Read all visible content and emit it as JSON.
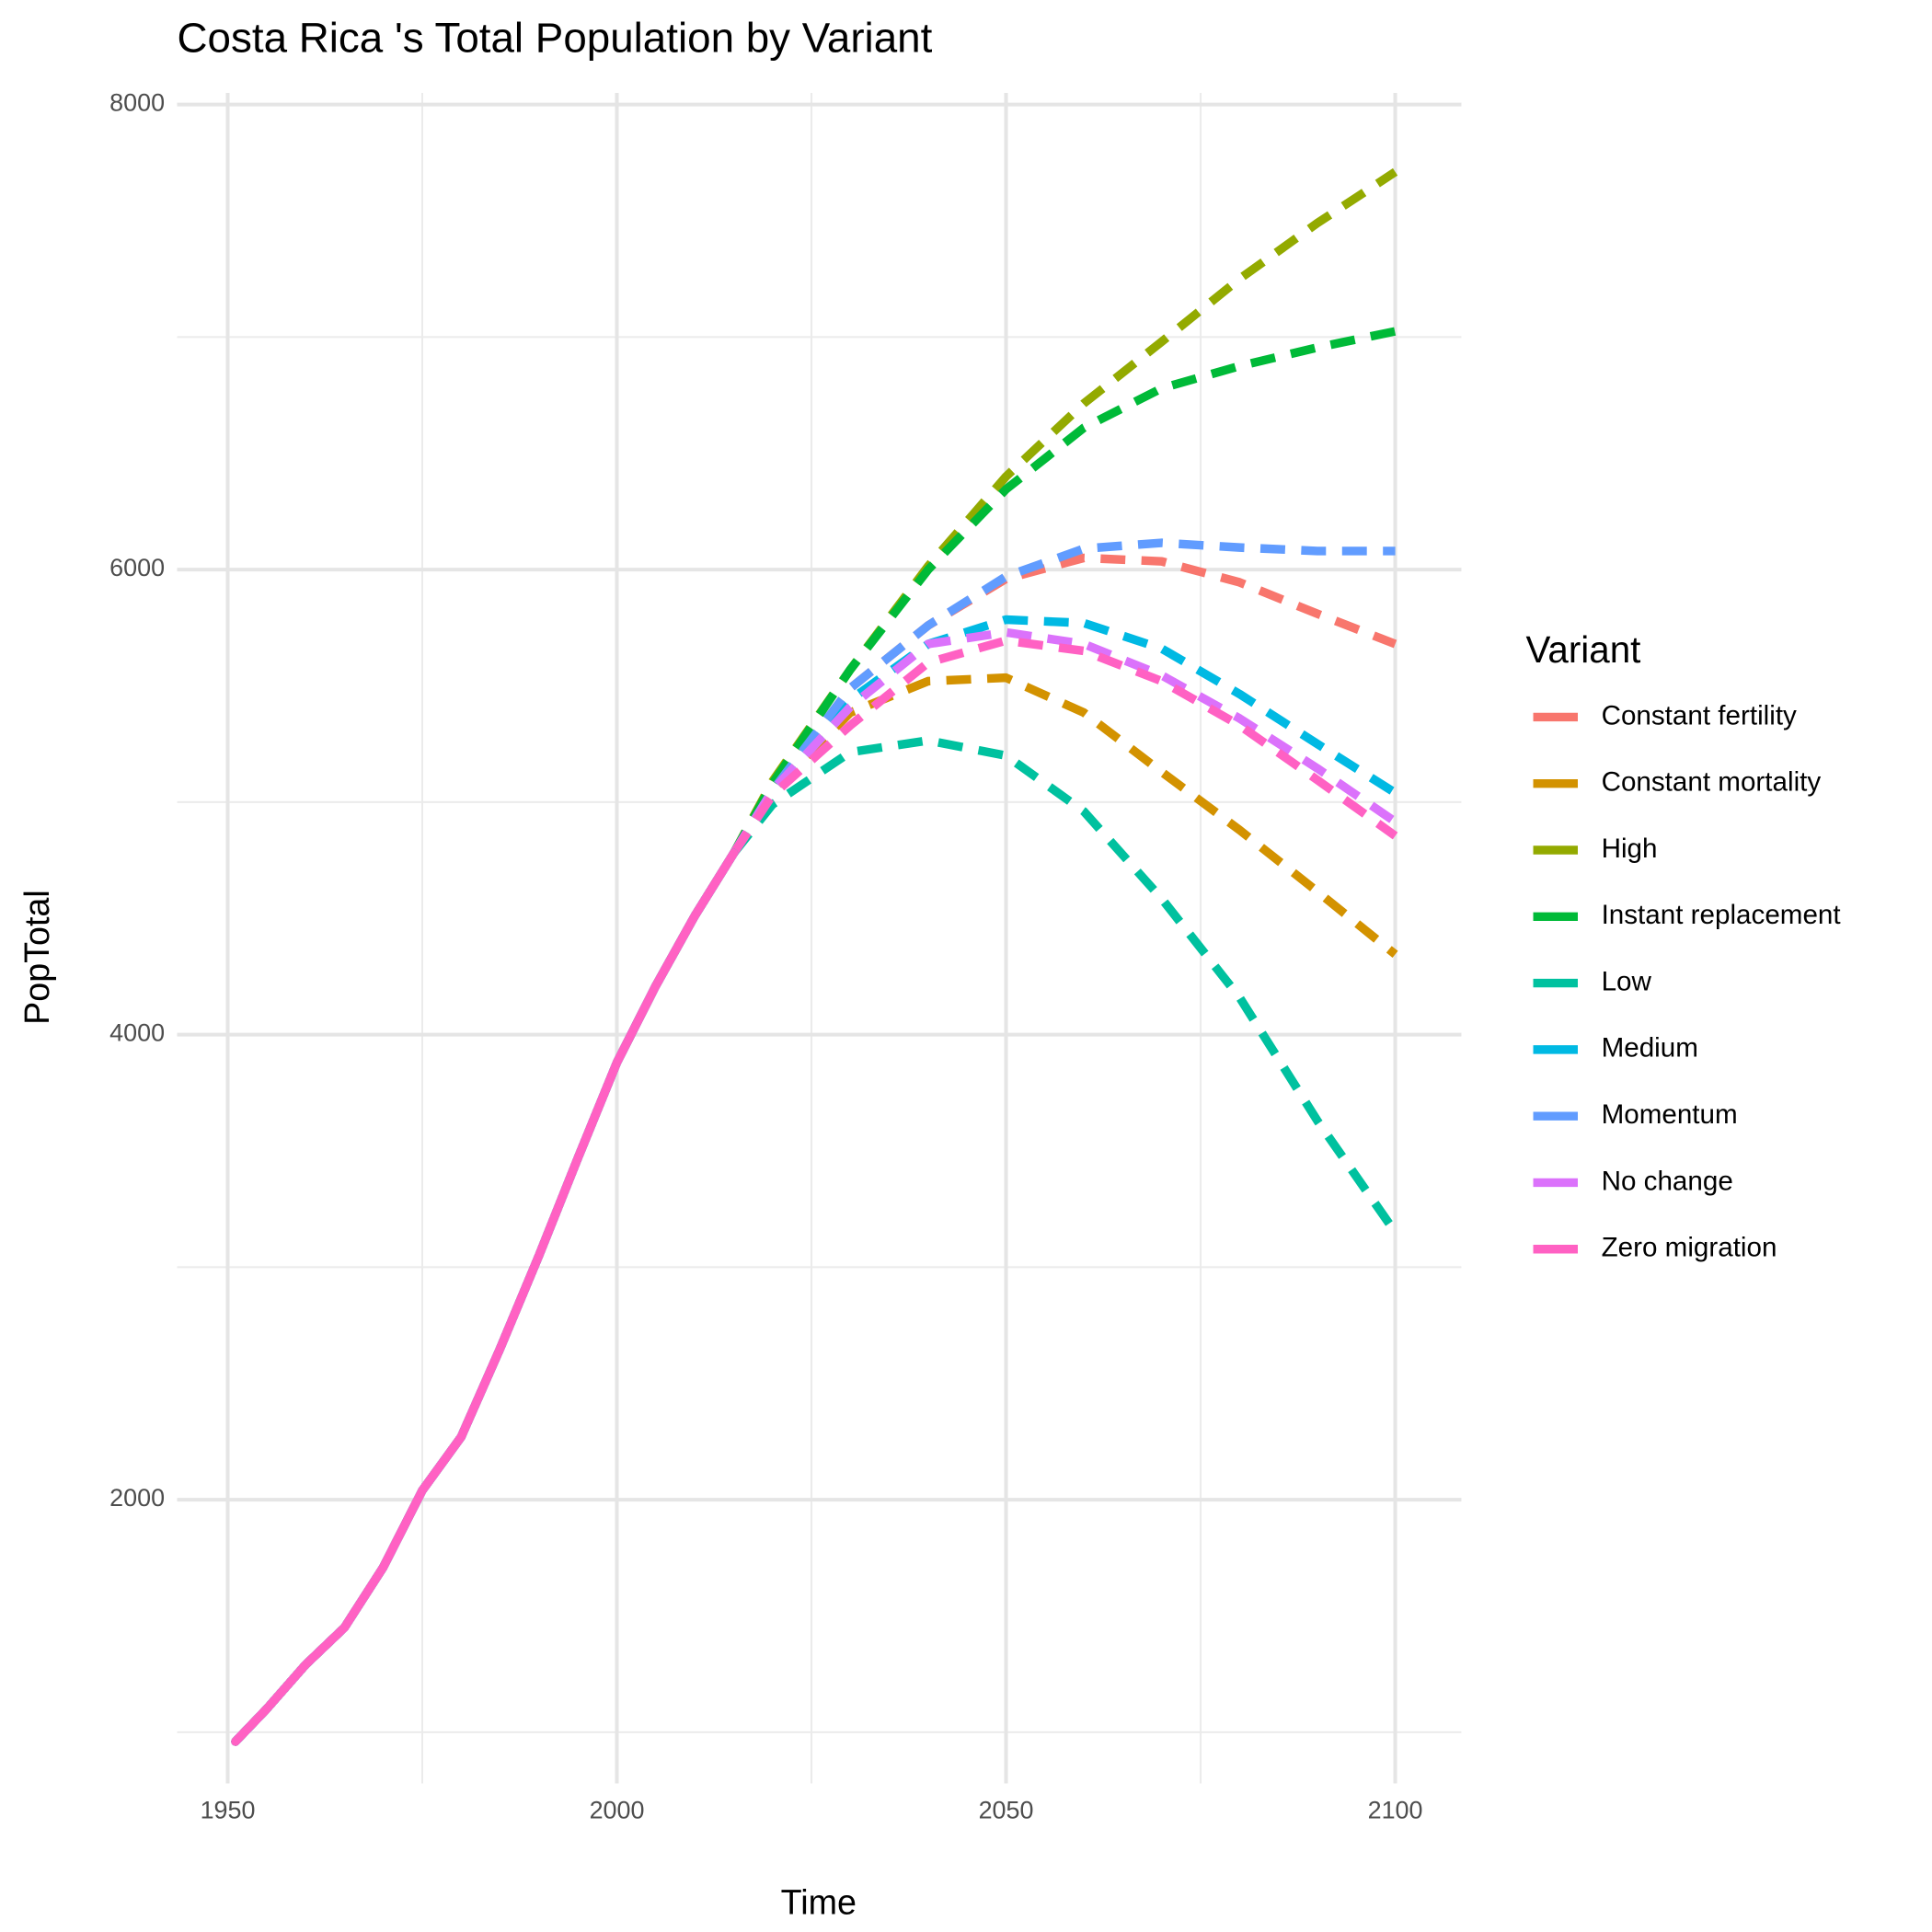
{
  "chart_data": {
    "type": "line",
    "title": "Costa Rica 's Total Population by Variant",
    "x_label": "Time",
    "y_label": "PopTotal",
    "legend_title": "Variant",
    "x": [
      1951,
      1955,
      1960,
      1965,
      1970,
      1975,
      1980,
      1985,
      1990,
      1995,
      2000,
      2005,
      2010,
      2015,
      2020,
      2030,
      2040,
      2050,
      2060,
      2070,
      2080,
      2090,
      2100
    ],
    "projection_start": 2015,
    "series": [
      {
        "name": "Constant fertility",
        "color": "#F8766D",
        "values": [
          960,
          1100,
          1290,
          1450,
          1710,
          2040,
          2270,
          2650,
          3050,
          3470,
          3880,
          4210,
          4510,
          4780,
          5050,
          5490,
          5760,
          5960,
          6050,
          6035,
          5945,
          5810,
          5680
        ]
      },
      {
        "name": "Constant mortality",
        "color": "#D39200",
        "values": [
          960,
          1100,
          1290,
          1450,
          1710,
          2040,
          2270,
          2650,
          3050,
          3470,
          3880,
          4210,
          4510,
          4780,
          5050,
          5385,
          5520,
          5535,
          5385,
          5130,
          4880,
          4615,
          4345
        ]
      },
      {
        "name": "High",
        "color": "#93AA00",
        "values": [
          960,
          1100,
          1290,
          1450,
          1710,
          2040,
          2270,
          2650,
          3050,
          3470,
          3880,
          4210,
          4510,
          4780,
          5090,
          5570,
          6015,
          6400,
          6715,
          6980,
          7250,
          7490,
          7710
        ]
      },
      {
        "name": "Instant replacement",
        "color": "#00BA38",
        "values": [
          960,
          1100,
          1290,
          1450,
          1710,
          2040,
          2270,
          2650,
          3050,
          3470,
          3880,
          4210,
          4510,
          4780,
          5080,
          5570,
          6000,
          6345,
          6610,
          6780,
          6875,
          6955,
          7025
        ]
      },
      {
        "name": "Low",
        "color": "#00C19F",
        "values": [
          960,
          1100,
          1290,
          1450,
          1710,
          2040,
          2270,
          2650,
          3050,
          3470,
          3880,
          4210,
          4510,
          4780,
          4990,
          5215,
          5265,
          5200,
          4960,
          4585,
          4160,
          3630,
          3150
        ]
      },
      {
        "name": "Medium",
        "color": "#00B9E3",
        "values": [
          960,
          1100,
          1290,
          1450,
          1710,
          2040,
          2270,
          2650,
          3050,
          3470,
          3880,
          4210,
          4510,
          4780,
          5050,
          5440,
          5680,
          5785,
          5770,
          5660,
          5465,
          5250,
          5040
        ]
      },
      {
        "name": "Momentum",
        "color": "#619CFF",
        "values": [
          960,
          1100,
          1290,
          1450,
          1710,
          2040,
          2270,
          2650,
          3050,
          3470,
          3880,
          4210,
          4510,
          4780,
          5050,
          5490,
          5760,
          5970,
          6090,
          6115,
          6095,
          6080,
          6080
        ]
      },
      {
        "name": "No change",
        "color": "#DB72FB",
        "values": [
          960,
          1100,
          1290,
          1450,
          1710,
          2040,
          2270,
          2650,
          3050,
          3470,
          3880,
          4210,
          4510,
          4780,
          5050,
          5410,
          5680,
          5730,
          5680,
          5545,
          5360,
          5145,
          4915
        ]
      },
      {
        "name": "Zero migration",
        "color": "#FF61C3",
        "values": [
          960,
          1100,
          1290,
          1450,
          1710,
          2040,
          2270,
          2650,
          3050,
          3470,
          3880,
          4210,
          4510,
          4780,
          5030,
          5330,
          5600,
          5695,
          5650,
          5520,
          5330,
          5095,
          4855
        ]
      }
    ],
    "xlim": [
      1943.5,
      2108.5
    ],
    "xticks": [
      1950,
      2000,
      2050,
      2100
    ],
    "x_minor_grid": [
      1975,
      2025,
      2075
    ],
    "ylim": [
      780,
      8050
    ],
    "yticks": [
      2000,
      4000,
      6000,
      8000
    ],
    "y_minor_grid": [
      1000,
      3000,
      5000,
      7000
    ],
    "grid": true
  }
}
